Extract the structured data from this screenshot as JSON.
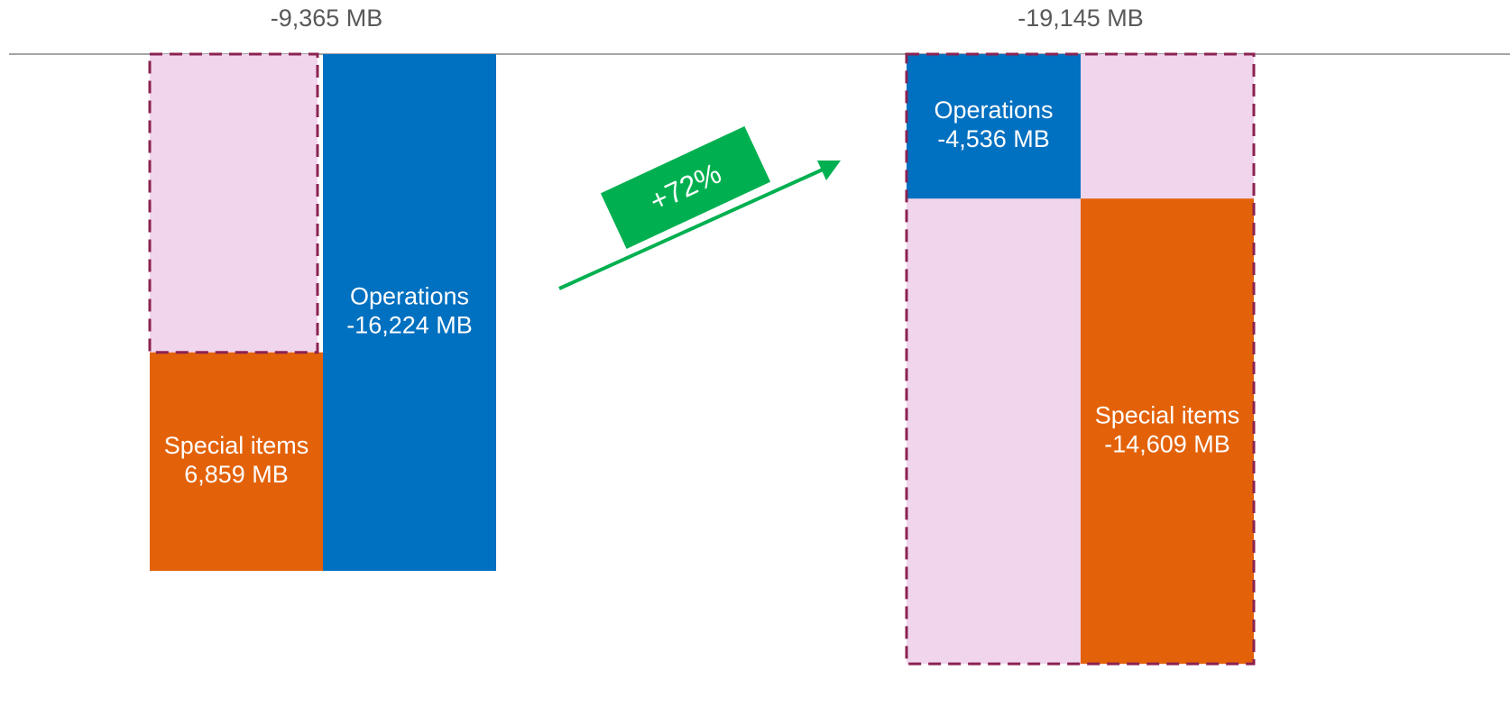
{
  "chart_data": {
    "type": "waterfall",
    "series": [
      {
        "name": "Operations",
        "color": "#0070c0",
        "values": [
          -16224,
          -4536
        ],
        "value_labels": [
          "-16,224 MB",
          "-4,536 MB"
        ]
      },
      {
        "name": "Special items",
        "color": "#e36209",
        "values": [
          6859,
          -14609
        ],
        "value_labels": [
          "6,859 MB",
          "-14,609 MB"
        ]
      }
    ],
    "totals": [
      -9365,
      -19145
    ],
    "total_labels": [
      "-9,365 MB",
      "-19,145 MB"
    ],
    "total_color": "#f0d5ec",
    "total_border_color": "#8b2252",
    "annotation": "+72%",
    "annotation_color": "#00b050"
  }
}
